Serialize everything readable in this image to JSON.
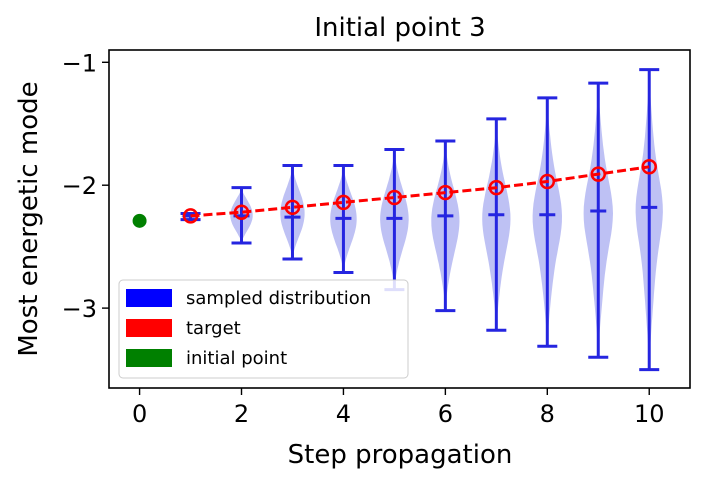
{
  "chart_data": {
    "type": "violin",
    "title": "Initial point 3",
    "xlabel": "Step propagation",
    "ylabel": "Most energetic mode",
    "xlim": [
      -0.6,
      10.8
    ],
    "ylim": [
      -3.65,
      -0.9
    ],
    "xticks": [
      0,
      2,
      4,
      6,
      8,
      10
    ],
    "yticks": [
      -1,
      -2,
      -3
    ],
    "xtick_labels": [
      "0",
      "2",
      "4",
      "6",
      "8",
      "10"
    ],
    "ytick_labels": [
      "−1",
      "−2",
      "−3"
    ],
    "legend": {
      "placement": "bottom-left",
      "entries": [
        {
          "label": "sampled distribution",
          "color": "#0000ff"
        },
        {
          "label": "target",
          "color": "#ff0000"
        },
        {
          "label": "initial point",
          "color": "#008000"
        }
      ]
    },
    "colors": {
      "violin_fill": "#b3b6f2",
      "violin_line": "#2525e0",
      "target": "#ff0000",
      "initial": "#008000"
    },
    "initial_point": {
      "x": 0,
      "y": -2.29
    },
    "target": {
      "x": [
        1,
        2,
        3,
        4,
        5,
        6,
        7,
        8,
        9,
        10
      ],
      "y": [
        -2.25,
        -2.22,
        -2.18,
        -2.14,
        -2.1,
        -2.06,
        -2.02,
        -1.97,
        -1.91,
        -1.85
      ]
    },
    "sampled_distribution": [
      {
        "x": 1,
        "min": -2.28,
        "max": -2.23,
        "median": -2.25,
        "width": 0.18
      },
      {
        "x": 2,
        "min": -2.47,
        "max": -2.02,
        "median": -2.25,
        "width": 0.22
      },
      {
        "x": 3,
        "min": -2.6,
        "max": -1.84,
        "median": -2.26,
        "width": 0.24
      },
      {
        "x": 4,
        "min": -2.71,
        "max": -1.84,
        "median": -2.27,
        "width": 0.26
      },
      {
        "x": 5,
        "min": -2.85,
        "max": -1.71,
        "median": -2.27,
        "width": 0.28
      },
      {
        "x": 6,
        "min": -3.02,
        "max": -1.64,
        "median": -2.25,
        "width": 0.28
      },
      {
        "x": 7,
        "min": -3.18,
        "max": -1.46,
        "median": -2.24,
        "width": 0.28
      },
      {
        "x": 8,
        "min": -3.31,
        "max": -1.29,
        "median": -2.24,
        "width": 0.29
      },
      {
        "x": 9,
        "min": -3.4,
        "max": -1.17,
        "median": -2.21,
        "width": 0.29
      },
      {
        "x": 10,
        "min": -3.5,
        "max": -1.06,
        "median": -2.18,
        "width": 0.27
      }
    ]
  }
}
